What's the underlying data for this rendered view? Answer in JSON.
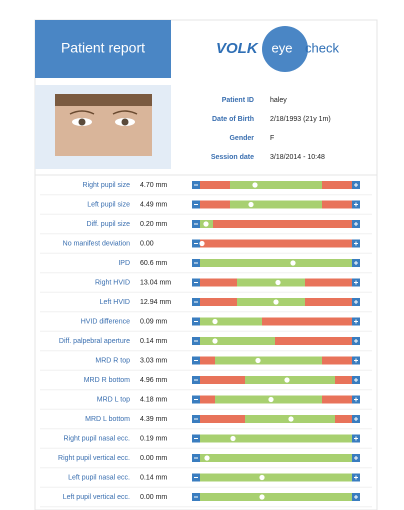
{
  "header": {
    "title": "Patient report",
    "logo": {
      "brand": "VOLK",
      "eye": "eye",
      "check": "check"
    }
  },
  "patient": [
    {
      "label": "Patient ID",
      "value": "haley"
    },
    {
      "label": "Date of Birth",
      "value": "2/18/1993 (21y 1m)"
    },
    {
      "label": "Gender",
      "value": "F"
    },
    {
      "label": "Session date",
      "value": "3/18/2014 - 10:48"
    }
  ],
  "measurements": [
    {
      "label": "Right pupil size",
      "value": "4.70 mm"
    },
    {
      "label": "Left pupil size",
      "value": "4.49 mm"
    },
    {
      "label": "Diff. pupil size",
      "value": "0.20 mm"
    },
    {
      "label": "No manifest deviation",
      "value": "0.00"
    },
    {
      "label": "IPD",
      "value": "60.6 mm"
    },
    {
      "label": "Right HVID",
      "value": "13.04 mm"
    },
    {
      "label": "Left HVID",
      "value": "12.94 mm"
    },
    {
      "label": "HVID difference",
      "value": "0.09 mm"
    },
    {
      "label": "Diff. palpebral aperture",
      "value": "0.14 mm"
    },
    {
      "label": "MRD R top",
      "value": "3.03 mm"
    },
    {
      "label": "MRD R bottom",
      "value": "4.96 mm"
    },
    {
      "label": "MRD L top",
      "value": "4.18 mm"
    },
    {
      "label": "MRD L bottom",
      "value": "4.39 mm"
    },
    {
      "label": "Right pupil nasal ecc.",
      "value": "0.19 mm"
    },
    {
      "label": "Right pupil vertical ecc.",
      "value": "0.00 mm"
    },
    {
      "label": "Left pupil nasal ecc.",
      "value": "0.14 mm"
    },
    {
      "label": "Left pupil vertical ecc.",
      "value": "0.00 mm"
    }
  ]
}
